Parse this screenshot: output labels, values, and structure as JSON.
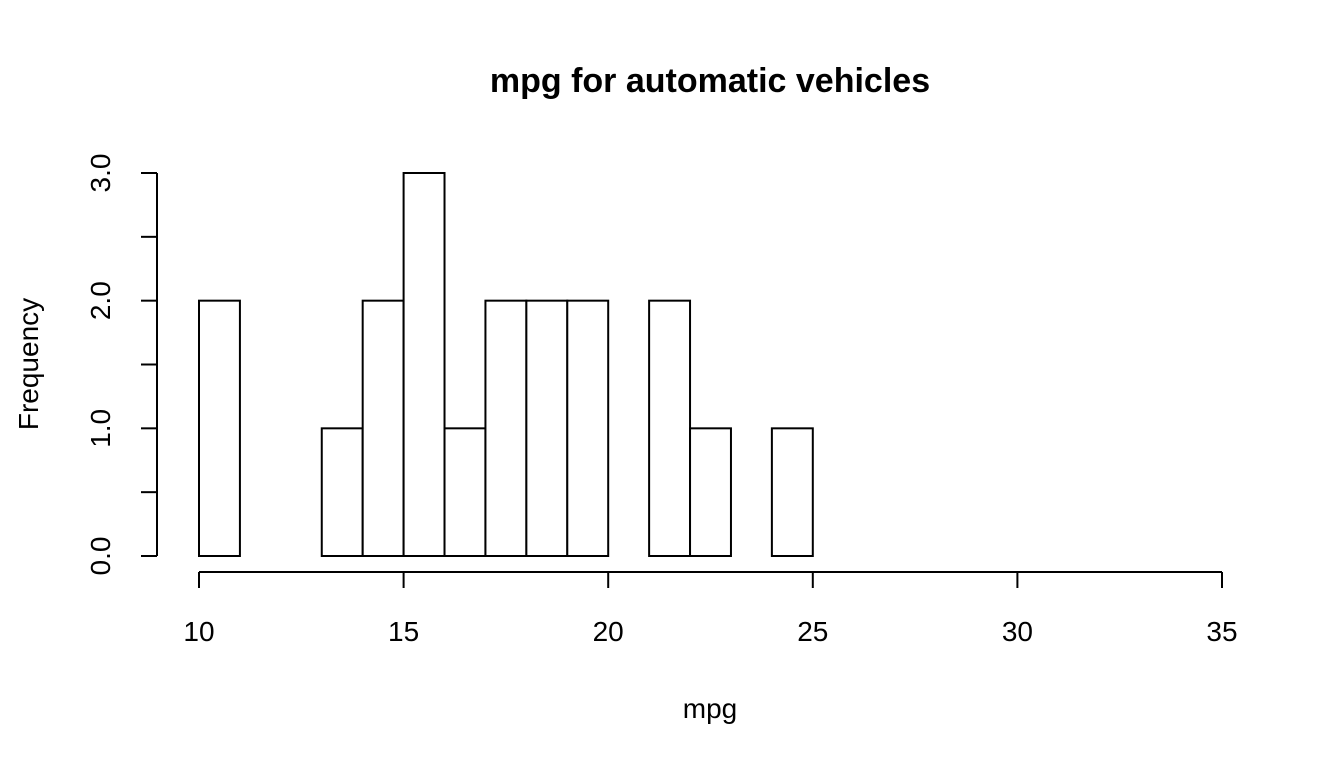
{
  "chart_data": {
    "type": "bar",
    "title": "mpg for automatic vehicles",
    "xlabel": "mpg",
    "ylabel": "Frequency",
    "bin_edges": [
      10,
      11,
      12,
      13,
      14,
      15,
      16,
      17,
      18,
      19,
      20,
      21,
      22,
      23,
      24,
      25
    ],
    "values": [
      2,
      0,
      0,
      1,
      2,
      3,
      1,
      2,
      2,
      2,
      0,
      2,
      1,
      0,
      1
    ],
    "xlim": [
      10,
      35
    ],
    "ylim": [
      0,
      3
    ],
    "x_ticks": [
      10,
      15,
      20,
      25,
      30,
      35
    ],
    "x_tick_labels": [
      "10",
      "15",
      "20",
      "25",
      "30",
      "35"
    ],
    "y_ticks": [
      0,
      0.5,
      1,
      1.5,
      2,
      2.5,
      3
    ],
    "y_tick_labels": [
      "0.0",
      "",
      "1.0",
      "",
      "2.0",
      "",
      "3.0"
    ],
    "grid": false,
    "legend": "none",
    "colors": {
      "bar_fill": "#ffffff",
      "bar_stroke": "#000000",
      "axis": "#000000"
    }
  }
}
